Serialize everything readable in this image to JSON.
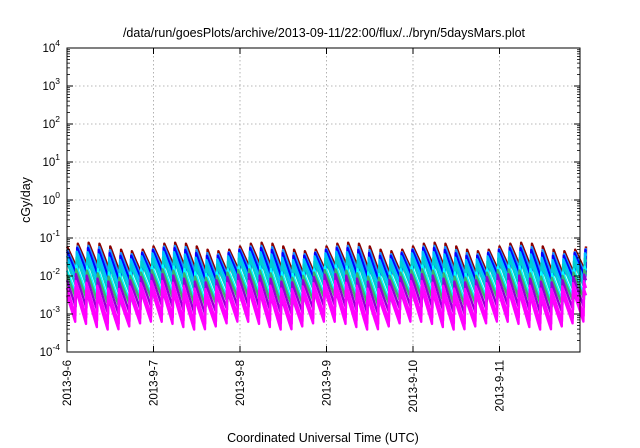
{
  "chart_data": {
    "type": "line",
    "title": "/data/run/goesPlots/archive/2013-09-11/22:00/flux/../bryn/5daysMars.plot",
    "xlabel": "Coordinated Universal Time (UTC)",
    "ylabel": "cGy/day",
    "yscale": "log",
    "ylim_exponent": [
      -4,
      4
    ],
    "y_ticks": [
      {
        "base": "10",
        "exp": "-4",
        "value_exp": -4
      },
      {
        "base": "10",
        "exp": "-3",
        "value_exp": -3
      },
      {
        "base": "10",
        "exp": "-2",
        "value_exp": -2
      },
      {
        "base": "10",
        "exp": "-1",
        "value_exp": -1
      },
      {
        "base": "10",
        "exp": "0",
        "value_exp": 0
      },
      {
        "base": "10",
        "exp": "1",
        "value_exp": 1
      },
      {
        "base": "10",
        "exp": "2",
        "value_exp": 2
      },
      {
        "base": "10",
        "exp": "3",
        "value_exp": 3
      },
      {
        "base": "10",
        "exp": "4",
        "value_exp": 4
      }
    ],
    "x_range_days": [
      0,
      6.0
    ],
    "x_ticks": [
      {
        "label": "2013-9-6",
        "day": 0
      },
      {
        "label": "2013-9-7",
        "day": 1
      },
      {
        "label": "2013-9-8",
        "day": 2
      },
      {
        "label": "2013-9-9",
        "day": 3
      },
      {
        "label": "2013-9-10",
        "day": 4
      },
      {
        "label": "2013-9-11",
        "day": 5
      }
    ],
    "grid": true,
    "sawtooth_period_hours": 3,
    "series": [
      {
        "color": "#8b0000",
        "peak": 0.06,
        "trough": 0.012,
        "phase": 0.0
      },
      {
        "color": "#ff0000",
        "peak": 0.05,
        "trough": 0.009,
        "phase": 0.05
      },
      {
        "color": "#1e90ff",
        "peak": 0.05,
        "trough": 0.01,
        "phase": 0.02
      },
      {
        "color": "#0000ff",
        "peak": 0.045,
        "trough": 0.008,
        "phase": 0.07
      },
      {
        "color": "#00bfff",
        "peak": 0.035,
        "trough": 0.006,
        "phase": 0.1
      },
      {
        "color": "#00ced1",
        "peak": 0.025,
        "trough": 0.004,
        "phase": 0.12
      },
      {
        "color": "#00ffff",
        "peak": 0.015,
        "trough": 0.0025,
        "phase": 0.14
      },
      {
        "color": "#3cb371",
        "peak": 0.012,
        "trough": 0.002,
        "phase": 0.16
      },
      {
        "color": "#9400d3",
        "peak": 0.009,
        "trough": 0.0012,
        "phase": 0.18
      },
      {
        "color": "#ff00ff",
        "peak": 0.006,
        "trough": 0.0007,
        "phase": 0.2
      },
      {
        "color": "#ff00ff",
        "peak": 0.004,
        "trough": 0.0005,
        "phase": 0.23
      }
    ]
  }
}
